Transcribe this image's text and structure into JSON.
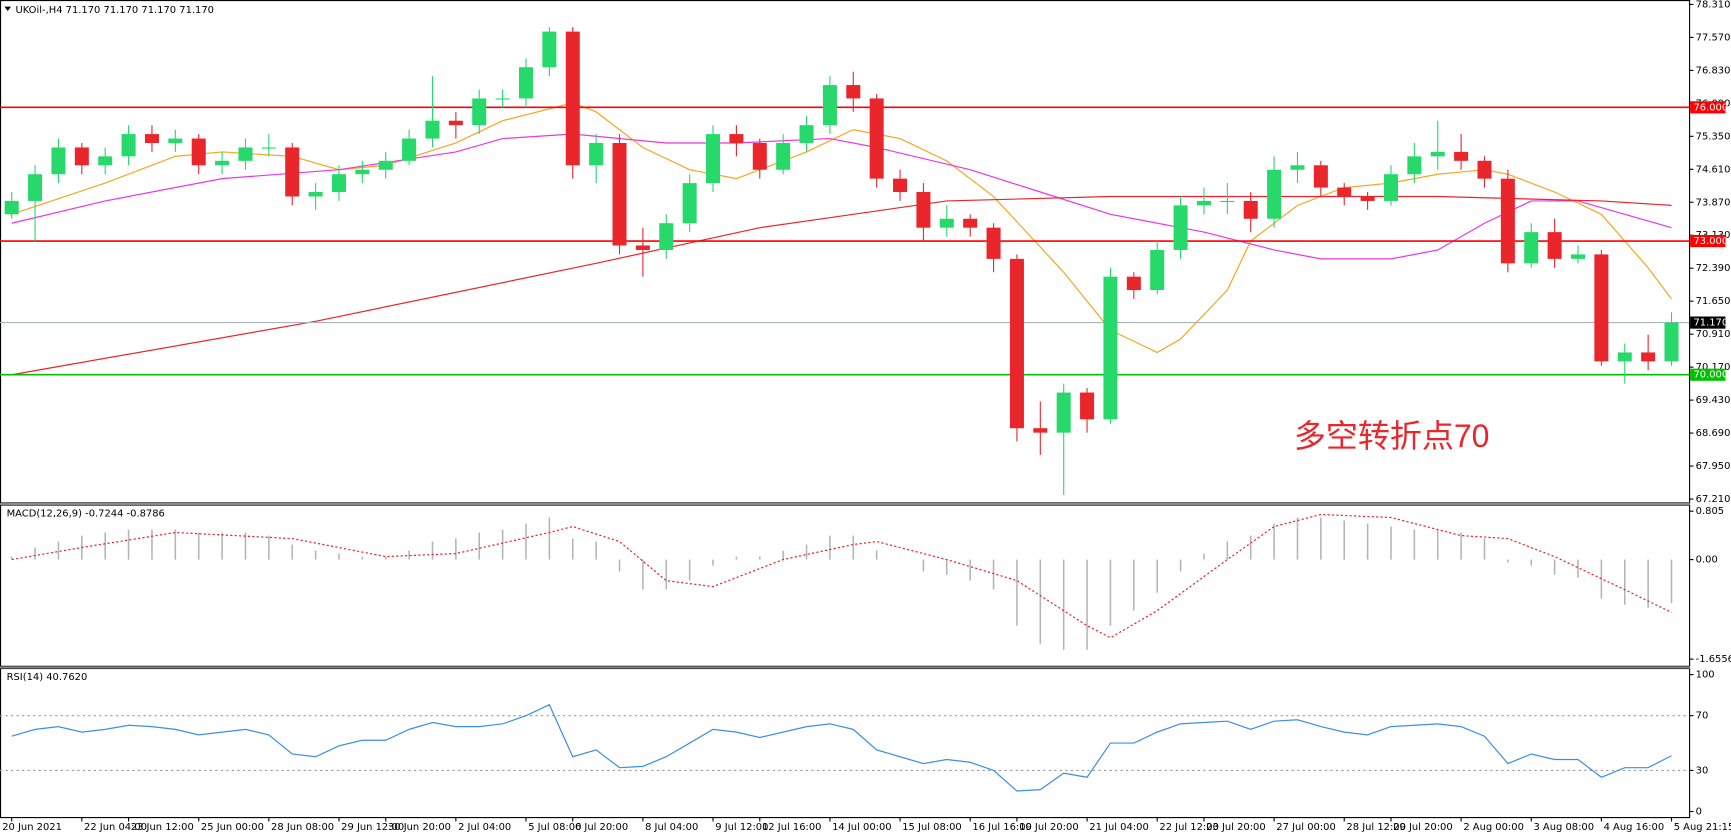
{
  "chart_data": [
    {
      "type": "candlestick",
      "title": "UKOil-,H4  71.170 71.170 71.170 71.170",
      "annotation": "多空转折点70",
      "xlim": [
        -0.5,
        71.75
      ],
      "xticks": [
        {
          "value": 0,
          "label": "20 Jun 2021"
        },
        {
          "value": 3,
          "label": "22 Jun 04:00"
        },
        {
          "value": 5,
          "label": "23 Jun 12:00"
        },
        {
          "value": 8,
          "label": "25 Jun 00:00"
        },
        {
          "value": 11,
          "label": "28 Jun 08:00"
        },
        {
          "value": 14,
          "label": "29 Jun 12:00"
        },
        {
          "value": 16,
          "label": "30 Jun 20:00"
        },
        {
          "value": 19,
          "label": "2 Jul 04:00"
        },
        {
          "value": 22,
          "label": "5 Jul 08:00"
        },
        {
          "value": 24,
          "label": "6 Jul 20:00"
        },
        {
          "value": 27,
          "label": "8 Jul 04:00"
        },
        {
          "value": 30,
          "label": "9 Jul 12:00"
        },
        {
          "value": 32,
          "label": "12 Jul 16:00"
        },
        {
          "value": 35,
          "label": "14 Jul 00:00"
        },
        {
          "value": 38,
          "label": "15 Jul 08:00"
        },
        {
          "value": 41,
          "label": "16 Jul 16:00"
        },
        {
          "value": 43,
          "label": "19 Jul 20:00"
        },
        {
          "value": 46,
          "label": "21 Jul 04:00"
        },
        {
          "value": 49,
          "label": "22 Jul 12:00"
        },
        {
          "value": 51,
          "label": "23 Jul 20:00"
        },
        {
          "value": 54,
          "label": "27 Jul 00:00"
        },
        {
          "value": 57,
          "label": "28 Jul 12:00"
        },
        {
          "value": 59,
          "label": "29 Jul 20:00"
        },
        {
          "value": 62,
          "label": "2 Aug 00:00"
        },
        {
          "value": 65,
          "label": "3 Aug 08:00"
        },
        {
          "value": 68,
          "label": "4 Aug 16:00"
        },
        {
          "value": 71,
          "label": "5 Aug 21:15"
        }
      ],
      "ylim": [
        67.21,
        78.31
      ],
      "yticks": [
        {
          "value": 78.31,
          "label": "78.310"
        },
        {
          "value": 77.57,
          "label": "77.570"
        },
        {
          "value": 76.83,
          "label": "76.830"
        },
        {
          "value": 76.09,
          "label": "76.090"
        },
        {
          "value": 75.35,
          "label": "75.350"
        },
        {
          "value": 74.61,
          "label": "74.610"
        },
        {
          "value": 73.87,
          "label": "73.870"
        },
        {
          "value": 73.13,
          "label": "73.130"
        },
        {
          "value": 72.39,
          "label": "72.390"
        },
        {
          "value": 71.65,
          "label": "71.650"
        },
        {
          "value": 70.91,
          "label": "70.910"
        },
        {
          "value": 70.17,
          "label": "70.170"
        },
        {
          "value": 69.43,
          "label": "69.430"
        },
        {
          "value": 68.69,
          "label": "68.690"
        },
        {
          "value": 67.95,
          "label": "67.950"
        },
        {
          "value": 67.21,
          "label": "67.210"
        }
      ],
      "up_color": "#27d86b",
      "down_color": "#e8262c",
      "open": [
        73.6,
        73.9,
        74.5,
        75.1,
        74.7,
        74.9,
        75.4,
        75.2,
        75.3,
        74.7,
        74.8,
        75.1,
        75.1,
        74.0,
        74.1,
        74.5,
        74.6,
        74.8,
        75.3,
        75.7,
        75.6,
        76.2,
        76.2,
        76.9,
        77.7,
        74.7,
        75.2,
        72.9,
        72.8,
        73.4,
        74.3,
        75.4,
        75.2,
        74.6,
        75.2,
        75.6,
        76.5,
        76.2,
        74.4,
        74.1,
        73.3,
        73.5,
        73.3,
        72.6,
        68.8,
        68.7,
        69.6,
        69.0,
        72.2,
        71.9,
        72.8,
        73.8,
        73.9,
        73.9,
        73.5,
        74.6,
        74.7,
        74.2,
        74.0,
        73.9,
        74.5,
        74.9,
        75.0,
        74.8,
        74.4,
        72.5,
        73.2,
        72.6,
        72.7,
        70.3,
        70.5,
        70.3
      ],
      "high": [
        74.1,
        74.7,
        75.3,
        75.2,
        75.1,
        75.6,
        75.6,
        75.5,
        75.4,
        75.0,
        75.3,
        75.4,
        75.2,
        74.3,
        74.7,
        74.8,
        75.0,
        75.5,
        76.7,
        75.9,
        76.4,
        76.4,
        77.1,
        77.8,
        77.8,
        75.4,
        75.4,
        73.3,
        73.6,
        74.5,
        75.6,
        75.6,
        75.3,
        75.4,
        75.8,
        76.7,
        76.8,
        76.3,
        74.6,
        74.3,
        73.8,
        73.6,
        73.4,
        72.7,
        69.4,
        69.8,
        69.7,
        72.4,
        72.3,
        73.0,
        74.0,
        74.2,
        74.3,
        74.1,
        74.9,
        75.0,
        74.8,
        74.3,
        74.1,
        74.7,
        75.2,
        75.7,
        75.4,
        74.9,
        74.6,
        73.4,
        73.5,
        72.9,
        72.8,
        70.7,
        70.9,
        71.4
      ],
      "low": [
        73.5,
        73.0,
        74.3,
        74.5,
        74.5,
        74.7,
        75.0,
        75.0,
        74.5,
        74.5,
        74.6,
        74.9,
        73.8,
        73.7,
        73.9,
        74.3,
        74.4,
        74.7,
        75.1,
        75.3,
        75.4,
        76.0,
        76.0,
        76.7,
        74.4,
        74.3,
        72.7,
        72.2,
        72.6,
        73.2,
        74.1,
        74.9,
        74.4,
        74.5,
        75.0,
        75.4,
        75.9,
        74.2,
        73.9,
        73.0,
        73.1,
        73.1,
        72.3,
        68.5,
        68.2,
        67.3,
        68.7,
        68.9,
        71.7,
        71.8,
        72.6,
        73.6,
        73.6,
        73.2,
        73.3,
        74.3,
        74.0,
        73.8,
        73.7,
        73.8,
        74.3,
        74.6,
        74.6,
        74.2,
        72.3,
        72.4,
        72.4,
        72.5,
        70.2,
        69.8,
        70.1,
        70.2
      ],
      "close": [
        73.9,
        74.5,
        75.1,
        74.7,
        74.9,
        75.4,
        75.2,
        75.3,
        74.7,
        74.8,
        75.1,
        75.1,
        74.0,
        74.1,
        74.5,
        74.6,
        74.8,
        75.3,
        75.7,
        75.6,
        76.2,
        76.2,
        76.9,
        77.7,
        74.7,
        75.2,
        72.9,
        72.8,
        73.4,
        74.3,
        75.4,
        75.2,
        74.6,
        75.2,
        75.6,
        76.5,
        76.2,
        74.4,
        74.1,
        73.3,
        73.5,
        73.3,
        72.6,
        68.8,
        68.7,
        69.6,
        69.0,
        72.2,
        71.9,
        72.8,
        73.8,
        73.9,
        73.9,
        73.5,
        74.6,
        74.7,
        74.2,
        74.0,
        73.9,
        74.5,
        74.9,
        75.0,
        74.8,
        74.4,
        72.5,
        73.2,
        72.6,
        72.7,
        70.3,
        70.5,
        70.3,
        71.17
      ],
      "series": [
        {
          "color": "#f5a623",
          "x": [
            0,
            4,
            7,
            9,
            12,
            14,
            16,
            19,
            21,
            24,
            25,
            27,
            29,
            31,
            32,
            34,
            36,
            38,
            40,
            42,
            45,
            47,
            49,
            50,
            52,
            53,
            55,
            57,
            59,
            61,
            63,
            64,
            66,
            68,
            70,
            71
          ],
          "values": [
            73.6,
            74.3,
            74.9,
            75.0,
            74.9,
            74.6,
            74.7,
            75.2,
            75.7,
            76.1,
            75.9,
            75.1,
            74.6,
            74.4,
            74.6,
            75.0,
            75.5,
            75.3,
            74.8,
            74.0,
            72.3,
            71.0,
            70.5,
            70.8,
            71.9,
            73.0,
            73.8,
            74.2,
            74.3,
            74.5,
            74.6,
            74.5,
            74.1,
            73.6,
            72.4,
            71.7
          ]
        },
        {
          "color": "#e838e0",
          "x": [
            0,
            4,
            9,
            14,
            19,
            21,
            24,
            28,
            31,
            35,
            37,
            41,
            44,
            47,
            51,
            54,
            56,
            59,
            61,
            63,
            65,
            67,
            69,
            71
          ],
          "values": [
            73.4,
            73.9,
            74.4,
            74.6,
            75.0,
            75.3,
            75.4,
            75.2,
            75.2,
            75.3,
            75.1,
            74.6,
            74.1,
            73.6,
            73.2,
            72.8,
            72.6,
            72.6,
            72.8,
            73.4,
            73.9,
            73.9,
            73.6,
            73.3
          ]
        },
        {
          "color": "#e8262c",
          "x": [
            0,
            13,
            25,
            32,
            40,
            47,
            61,
            68,
            71
          ],
          "values": [
            70.0,
            71.2,
            72.5,
            73.3,
            73.9,
            74.0,
            74.0,
            73.9,
            73.8
          ]
        }
      ],
      "levels": [
        {
          "value": 76,
          "label": "76.000",
          "color": "#ff0000",
          "box_color": "#ff0000"
        },
        {
          "value": 73,
          "label": "73.000",
          "color": "#ff0000",
          "box_color": "#ff0000"
        },
        {
          "value": 70,
          "label": "70.000",
          "color": "#00c000",
          "box_color": "#00c000"
        },
        {
          "value": 71.17,
          "label": "71.170",
          "color": "#a9b4bf",
          "box_color": "#000000"
        }
      ]
    },
    {
      "type": "macd",
      "title": "MACD(12,26,9) -0.7244 -0.8786",
      "xlim": [
        -0.5,
        71.75
      ],
      "ylim": [
        -1.6556,
        0.805
      ],
      "yticks": [
        0.805,
        {
          "value": 0,
          "label": "0.00"
        },
        -1.6556
      ],
      "series": [
        {
          "color": "#b4b4b4",
          "values": [
            0.05,
            0.2,
            0.3,
            0.4,
            0.45,
            0.5,
            0.5,
            0.5,
            0.45,
            0.45,
            0.45,
            0.4,
            0.25,
            0.15,
            0.1,
            0.05,
            0.05,
            0.15,
            0.3,
            0.35,
            0.45,
            0.5,
            0.6,
            0.7,
            0.35,
            0.3,
            -0.2,
            -0.5,
            -0.5,
            -0.35,
            -0.1,
            0.05,
            0.05,
            0.15,
            0.25,
            0.4,
            0.4,
            0.15,
            0,
            -0.2,
            -0.25,
            -0.35,
            -0.5,
            -1.1,
            -1.4,
            -1.5,
            -1.5,
            -1.1,
            -0.85,
            -0.55,
            -0.2,
            0.1,
            0.3,
            0.4,
            0.6,
            0.7,
            0.7,
            0.65,
            0.6,
            0.55,
            0.5,
            0.5,
            0.45,
            0.35,
            -0.05,
            -0.1,
            -0.25,
            -0.3,
            -0.65,
            -0.75,
            -0.8,
            -0.7244
          ]
        },
        {
          "color": "#e8262c",
          "x": [
            0,
            3,
            7,
            12,
            16,
            19,
            23,
            24,
            26,
            28,
            30,
            33,
            36,
            37,
            40,
            43,
            46,
            47,
            49,
            52,
            54,
            56,
            59,
            62,
            64,
            66,
            69,
            71
          ],
          "values": [
            0.0,
            0.2,
            0.45,
            0.35,
            0.05,
            0.1,
            0.45,
            0.55,
            0.3,
            -0.35,
            -0.45,
            0.0,
            0.25,
            0.3,
            0.0,
            -0.35,
            -1.1,
            -1.3,
            -0.85,
            0.0,
            0.55,
            0.75,
            0.7,
            0.4,
            0.35,
            0.05,
            -0.5,
            -0.8786
          ]
        }
      ]
    },
    {
      "type": "line",
      "title": "RSI(14) 40.7620",
      "xlim": [
        -0.5,
        71.75
      ],
      "ylim": [
        0,
        100
      ],
      "yticks": [
        0,
        30,
        70,
        100
      ],
      "series": [
        {
          "color": "#3d8fe0",
          "values": [
            55,
            60,
            62,
            58,
            60,
            63,
            62,
            60,
            56,
            58,
            60,
            56,
            42,
            40,
            48,
            52,
            52,
            60,
            65,
            62,
            62,
            64,
            70,
            78,
            40,
            45,
            32,
            33,
            40,
            50,
            60,
            58,
            54,
            58,
            62,
            64,
            60,
            45,
            40,
            35,
            38,
            36,
            30,
            15,
            16,
            28,
            25,
            50,
            50,
            58,
            64,
            65,
            66,
            60,
            66,
            67,
            62,
            58,
            56,
            62,
            63,
            64,
            62,
            55,
            35,
            42,
            38,
            38,
            25,
            32,
            32,
            40.762
          ]
        }
      ]
    }
  ]
}
